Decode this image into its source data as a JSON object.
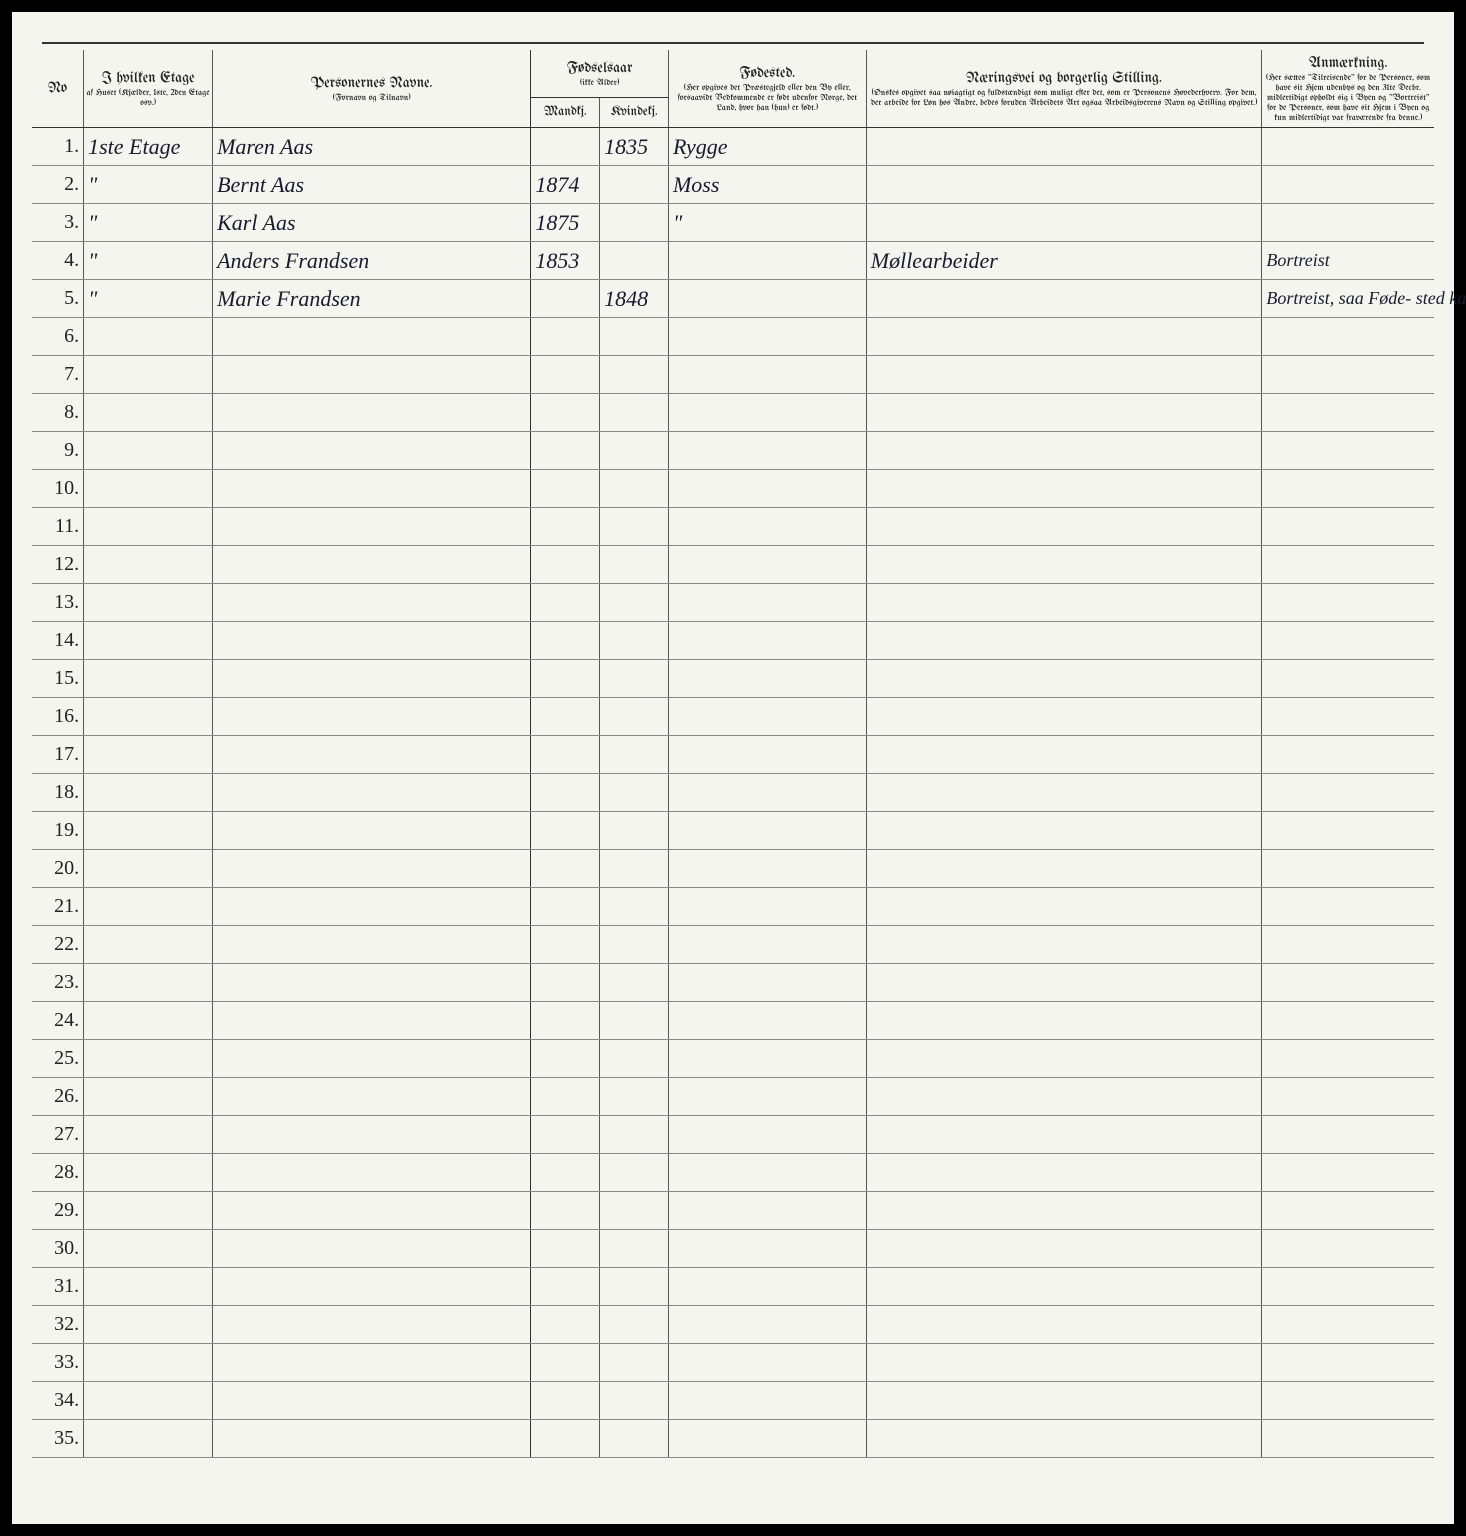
{
  "headers": {
    "no": "No",
    "etage_main": "I hvilken Etage",
    "etage_sub": "af Huset\n(Kjælder, 1ste, 2den\nEtage osv.)",
    "names_main": "Personernes Navne.",
    "names_sub": "(Fornavn og Tilnavn)",
    "year_main": "Fødselsaar",
    "year_sub": "(ikke Alder)",
    "year_m": "Mandkj.",
    "year_f": "Kvindekj.",
    "birthplace_main": "Fødested.",
    "birthplace_sub": "(Her opgives det Præstegjeld eller den By eller, forsaavidt Vedkommende er født udenfor Norge, det Land, hvor han (hun) er født.)",
    "occupation_main": "Næringsvei og borgerlig Stilling.",
    "occupation_sub": "(Ønskes opgivet saa nøiagtigt og fuldstændigt som muligt efter det, som er Personens Hovederhverv. For dem, der arbeide for Løn hos Andre, bedes foruden Arbeidets Art ogsaa Arbeidsgiverens Navn og Stilling opgivet.)",
    "remarks_main": "Anmærkning.",
    "remarks_sub": "(Her sættes \"Tilreisende\" for de Personer, som have sit Hjem udenbys og den 31te Decbr. midlertidigt opholdt sig i Byen og \"Bortreist\" for de Personer, som have sit Hjem i Byen og kun midlertidigt var fraværende fra denne.)"
  },
  "rows": [
    {
      "no": "1.",
      "etage": "1ste Etage",
      "name": "Maren Aas",
      "year_m": "",
      "year_f": "1835",
      "birthplace": "Rygge",
      "occupation": "",
      "remarks": ""
    },
    {
      "no": "2.",
      "etage": "\"",
      "name": "Bernt Aas",
      "year_m": "1874",
      "year_f": "",
      "birthplace": "Moss",
      "occupation": "",
      "remarks": ""
    },
    {
      "no": "3.",
      "etage": "\"",
      "name": "Karl Aas",
      "year_m": "1875",
      "year_f": "",
      "birthplace": "\"",
      "occupation": "",
      "remarks": ""
    },
    {
      "no": "4.",
      "etage": "\"",
      "name": "Anders Frandsen",
      "year_m": "1853",
      "year_f": "",
      "birthplace": "",
      "occupation": "Møllearbeider",
      "remarks": "Bortreist"
    },
    {
      "no": "5.",
      "etage": "\"",
      "name": "Marie Frandsen",
      "year_m": "",
      "year_f": "1848",
      "birthplace": "",
      "occupation": "",
      "remarks": "Bortreist, saa Føde-\nsted kan ikke opgives"
    },
    {
      "no": "6."
    },
    {
      "no": "7."
    },
    {
      "no": "8."
    },
    {
      "no": "9."
    },
    {
      "no": "10."
    },
    {
      "no": "11."
    },
    {
      "no": "12."
    },
    {
      "no": "13."
    },
    {
      "no": "14."
    },
    {
      "no": "15."
    },
    {
      "no": "16."
    },
    {
      "no": "17."
    },
    {
      "no": "18."
    },
    {
      "no": "19."
    },
    {
      "no": "20."
    },
    {
      "no": "21."
    },
    {
      "no": "22."
    },
    {
      "no": "23."
    },
    {
      "no": "24."
    },
    {
      "no": "25."
    },
    {
      "no": "26."
    },
    {
      "no": "27."
    },
    {
      "no": "28."
    },
    {
      "no": "29."
    },
    {
      "no": "30."
    },
    {
      "no": "31."
    },
    {
      "no": "32."
    },
    {
      "no": "33."
    },
    {
      "no": "34."
    },
    {
      "no": "35."
    }
  ],
  "colors": {
    "paper": "#f5f5f0",
    "ink": "#1a1a2e",
    "rule": "#333333",
    "line": "#888888"
  }
}
